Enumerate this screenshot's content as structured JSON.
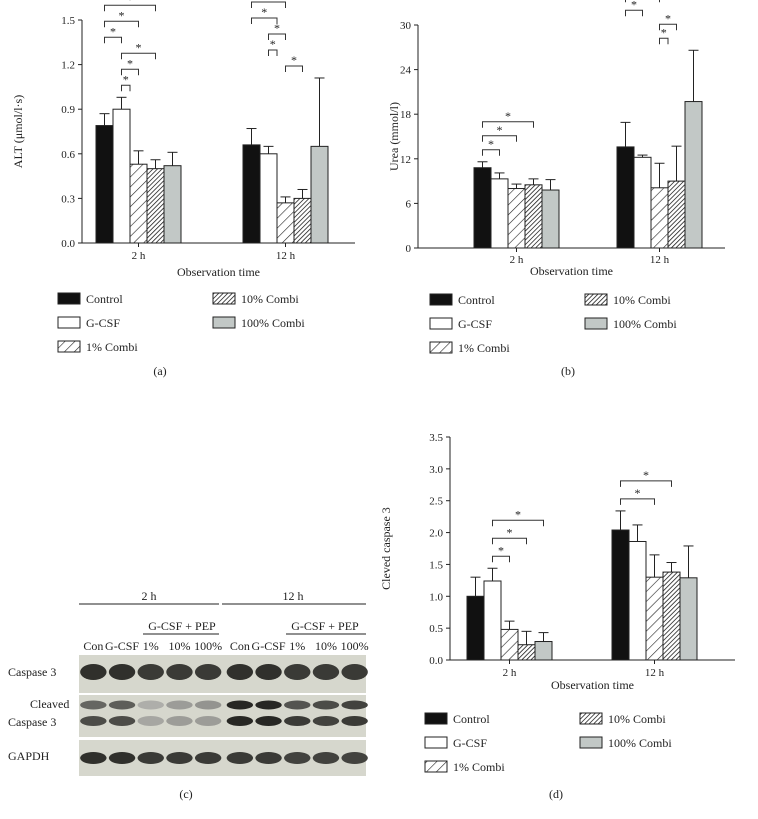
{
  "chart_data": [
    {
      "type": "bar",
      "panel": "(a)",
      "categories": [
        "2 h",
        "12 h"
      ],
      "xlabel": "Observation time",
      "ylabel": "ALT (μmol/l·s)",
      "ylim": [
        0,
        1.5
      ],
      "yticks": [
        "0.0",
        "0.3",
        "0.6",
        "0.9",
        "1.2",
        "1.5"
      ],
      "series": [
        {
          "name": "Control",
          "values": [
            0.79,
            0.66
          ],
          "errors": [
            0.08,
            0.11
          ]
        },
        {
          "name": "G-CSF",
          "values": [
            0.9,
            0.6
          ],
          "errors": [
            0.08,
            0.05
          ]
        },
        {
          "name": "1% Combi",
          "values": [
            0.53,
            0.27
          ],
          "errors": [
            0.09,
            0.04
          ]
        },
        {
          "name": "10% Combi",
          "values": [
            0.5,
            0.3
          ],
          "errors": [
            0.06,
            0.06
          ]
        },
        {
          "name": "100% Combi",
          "values": [
            0.52,
            0.65
          ],
          "errors": [
            0.09,
            0.46
          ]
        }
      ],
      "significance": [
        {
          "group": 0,
          "from": 0,
          "to": 3,
          "label": "*"
        },
        {
          "group": 0,
          "from": 0,
          "to": 2,
          "label": "*"
        },
        {
          "group": 0,
          "from": 0,
          "to": 1,
          "label": "*"
        },
        {
          "group": 0,
          "from": 1,
          "to": 3,
          "label": "*"
        },
        {
          "group": 0,
          "from": 1,
          "to": 2,
          "label": "*"
        },
        {
          "group": 0,
          "from": 1,
          "to": 1.5,
          "label": "*"
        },
        {
          "group": 1,
          "from": 0,
          "to": 2,
          "label": "*"
        },
        {
          "group": 1,
          "from": 0,
          "to": 1.5,
          "label": "*"
        },
        {
          "group": 1,
          "from": 1,
          "to": 2,
          "label": "*"
        },
        {
          "group": 1,
          "from": 1,
          "to": 1.5,
          "label": "*"
        },
        {
          "group": 1,
          "from": 2,
          "to": 3,
          "label": "*"
        }
      ],
      "legend": "below"
    },
    {
      "type": "bar",
      "panel": "(b)",
      "categories": [
        "2 h",
        "12 h"
      ],
      "xlabel": "Observation time",
      "ylabel": "Urea (mmol/l)",
      "ylim": [
        0,
        30
      ],
      "yticks": [
        "0",
        "6",
        "12",
        "18",
        "24",
        "30"
      ],
      "series": [
        {
          "name": "Control",
          "values": [
            10.8,
            13.6
          ],
          "errors": [
            0.8,
            3.3
          ]
        },
        {
          "name": "G-CSF",
          "values": [
            9.3,
            12.2
          ],
          "errors": [
            0.8,
            0.3
          ]
        },
        {
          "name": "1% Combi",
          "values": [
            8.0,
            8.1
          ],
          "errors": [
            0.6,
            3.3
          ]
        },
        {
          "name": "10% Combi",
          "values": [
            8.5,
            9.0
          ],
          "errors": [
            0.8,
            4.7
          ]
        },
        {
          "name": "100% Combi",
          "values": [
            7.8,
            19.7
          ],
          "errors": [
            1.4,
            6.9
          ]
        }
      ],
      "significance": [
        {
          "group": 0,
          "from": 0,
          "to": 3,
          "label": "*"
        },
        {
          "group": 0,
          "from": 0,
          "to": 2,
          "label": "*"
        },
        {
          "group": 0,
          "from": 0,
          "to": 1,
          "label": "*"
        },
        {
          "group": 1,
          "from": 0,
          "to": 2,
          "label": "*"
        },
        {
          "group": 1,
          "from": 0,
          "to": 1,
          "label": "*"
        },
        {
          "group": 1,
          "from": 2,
          "to": 3,
          "label": "*"
        },
        {
          "group": 1,
          "from": 2,
          "to": 2.5,
          "label": "*"
        }
      ],
      "legend": "below"
    },
    {
      "type": "bar",
      "panel": "(d)",
      "categories": [
        "2 h",
        "12 h"
      ],
      "xlabel": "Observation time",
      "ylabel": "Cleved caspase 3",
      "ylim": [
        0,
        3.5
      ],
      "yticks": [
        "0.0",
        "0.5",
        "1.0",
        "1.5",
        "2.0",
        "2.5",
        "3.0",
        "3.5"
      ],
      "series": [
        {
          "name": "Control",
          "values": [
            1.0,
            2.04
          ],
          "errors": [
            0.3,
            0.3
          ]
        },
        {
          "name": "G-CSF",
          "values": [
            1.24,
            1.86
          ],
          "errors": [
            0.2,
            0.26
          ]
        },
        {
          "name": "1% Combi",
          "values": [
            0.48,
            1.3
          ],
          "errors": [
            0.13,
            0.35
          ]
        },
        {
          "name": "10% Combi",
          "values": [
            0.24,
            1.38
          ],
          "errors": [
            0.21,
            0.15
          ]
        },
        {
          "name": "100% Combi",
          "values": [
            0.29,
            1.29
          ],
          "errors": [
            0.14,
            0.5
          ]
        }
      ],
      "significance": [
        {
          "group": 0,
          "from": 1,
          "to": 4,
          "label": "*"
        },
        {
          "group": 0,
          "from": 1,
          "to": 3,
          "label": "*"
        },
        {
          "group": 0,
          "from": 1,
          "to": 2,
          "label": "*"
        },
        {
          "group": 1,
          "from": 0,
          "to": 3,
          "label": "*"
        },
        {
          "group": 1,
          "from": 0,
          "to": 2,
          "label": "*"
        }
      ],
      "legend": "below"
    }
  ],
  "legend_items": [
    "Control",
    "G-CSF",
    "1% Combi",
    "10% Combi",
    "100% Combi"
  ],
  "blot": {
    "panel": "(c)",
    "time_groups": [
      "2 h",
      "12 h"
    ],
    "treatment_header": "G-CSF + PEP",
    "lanes": [
      "Con",
      "G-CSF",
      "1%",
      "10%",
      "100%",
      "Con",
      "G-CSF",
      "1%",
      "10%",
      "100%"
    ],
    "rows": [
      "Caspase 3",
      "Cleaved",
      "Caspase 3",
      "GAPDH"
    ],
    "caspase3_intensity": [
      0.9,
      0.9,
      0.85,
      0.85,
      0.85,
      0.9,
      0.9,
      0.85,
      0.85,
      0.85
    ],
    "cleaved_upper_intensity": [
      0.6,
      0.65,
      0.2,
      0.3,
      0.35,
      0.95,
      0.95,
      0.7,
      0.75,
      0.8
    ],
    "cleaved_lower_intensity": [
      0.75,
      0.75,
      0.25,
      0.3,
      0.3,
      0.95,
      0.95,
      0.85,
      0.8,
      0.85
    ],
    "gapdh_intensity": [
      0.9,
      0.9,
      0.85,
      0.85,
      0.85,
      0.85,
      0.85,
      0.8,
      0.8,
      0.8
    ]
  }
}
